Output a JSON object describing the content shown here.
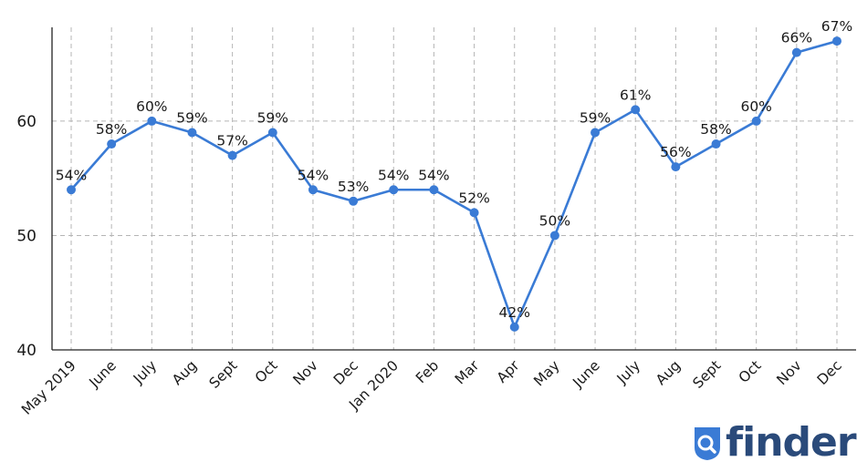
{
  "brand": {
    "logo_text": "finder",
    "logo_icon": "search-magnifier-icon",
    "logo_color": "#2a4a7a",
    "logo_accent": "#3a7bd5"
  },
  "chart_data": {
    "type": "line",
    "title": "",
    "xlabel": "",
    "ylabel": "",
    "ylim": [
      40,
      68
    ],
    "yticks": [
      40,
      50,
      60
    ],
    "grid": true,
    "line_color": "#3a7bd5",
    "categories": [
      "May 2019",
      "June",
      "July",
      "Aug",
      "Sept",
      "Oct",
      "Nov",
      "Dec",
      "Jan 2020",
      "Feb",
      "Mar",
      "Apr",
      "May",
      "June",
      "July",
      "Aug",
      "Sept",
      "Oct",
      "Nov",
      "Dec"
    ],
    "values": [
      54,
      58,
      60,
      59,
      57,
      59,
      54,
      53,
      54,
      54,
      52,
      42,
      50,
      59,
      61,
      56,
      58,
      60,
      66,
      67
    ],
    "data_labels": [
      "54%",
      "58%",
      "60%",
      "59%",
      "57%",
      "59%",
      "54%",
      "53%",
      "54%",
      "54%",
      "52%",
      "42%",
      "50%",
      "59%",
      "61%",
      "56%",
      "58%",
      "60%",
      "66%",
      "67%"
    ]
  }
}
